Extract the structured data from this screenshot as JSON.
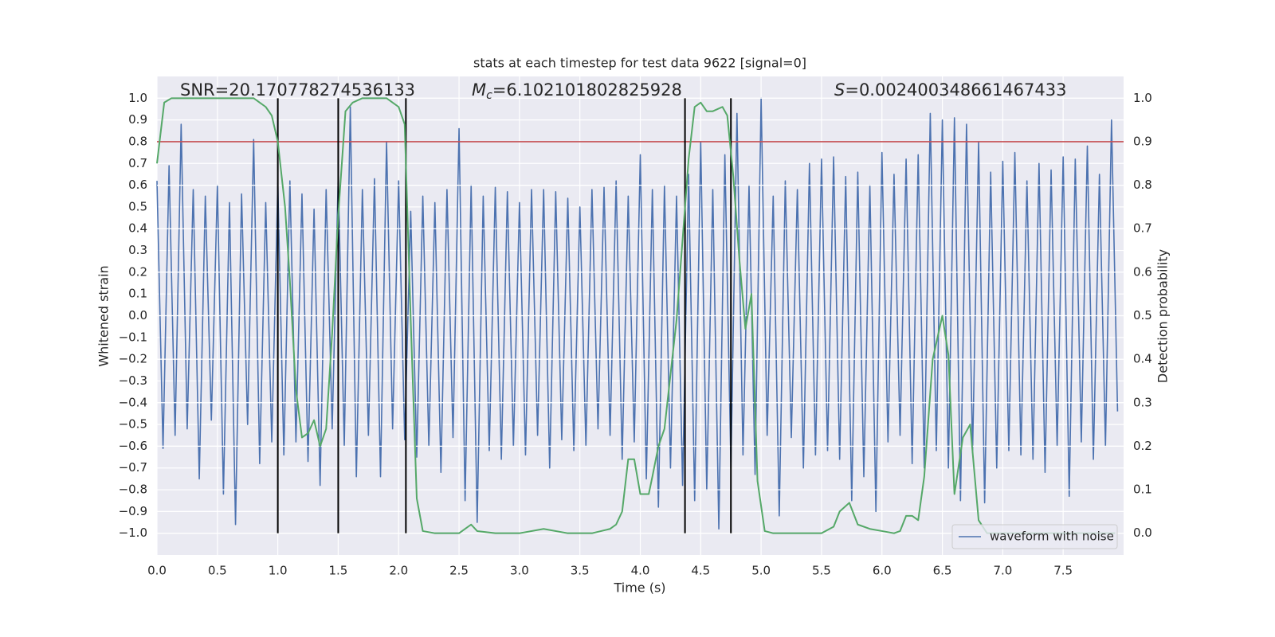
{
  "chart_data": {
    "type": "line",
    "title": "stats at each timestep for test data 9622 [signal=0]",
    "xlabel": "Time (s)",
    "ylabel": "Whitened strain",
    "y2label": "Detection probability",
    "annotations": [
      {
        "text": "SNR=20.170778274536133"
      },
      {
        "symbol": "M",
        "subscript": "c",
        "text": "=6.102101802825928"
      },
      {
        "symbol": "S",
        "text": "=0.002400348661467433"
      }
    ],
    "xlim": [
      0,
      8
    ],
    "xticks": [
      {
        "value": 0,
        "label": "0.0"
      },
      0.5,
      {
        "value": 1,
        "label": "1.0"
      },
      1.5,
      {
        "value": 2,
        "label": "2.0"
      },
      2.5,
      {
        "value": 3,
        "label": "3.0"
      },
      3.5,
      {
        "value": 4,
        "label": "4.0"
      },
      4.5,
      {
        "value": 5,
        "label": "5.0"
      },
      5.5,
      {
        "value": 6,
        "label": "6.0"
      },
      6.5,
      {
        "value": 7,
        "label": "7.0"
      },
      7.5
    ],
    "ylim": [
      -1.1,
      1.1
    ],
    "yticks": [
      {
        "value": -1,
        "label": "−1.0"
      },
      {
        "value": -0.9,
        "label": "−0.9"
      },
      {
        "value": -0.8,
        "label": "−0.8"
      },
      {
        "value": -0.7,
        "label": "−0.7"
      },
      {
        "value": -0.6,
        "label": "−0.6"
      },
      {
        "value": -0.5,
        "label": "−0.5"
      },
      {
        "value": -0.4,
        "label": "−0.4"
      },
      {
        "value": -0.3,
        "label": "−0.3"
      },
      {
        "value": -0.2,
        "label": "−0.2"
      },
      {
        "value": -0.1,
        "label": "−0.1"
      },
      {
        "value": 0,
        "label": "0.0"
      },
      0.1,
      0.2,
      0.3,
      0.4,
      0.5,
      0.6,
      0.7,
      0.8,
      0.9,
      {
        "value": 1,
        "label": "1.0"
      }
    ],
    "y2lim": [
      -0.05,
      1.05
    ],
    "y2ticks": [
      {
        "value": 0,
        "label": "0.0"
      },
      0.1,
      0.2,
      0.3,
      0.4,
      0.5,
      0.6,
      0.7,
      0.8,
      0.9,
      {
        "value": 1,
        "label": "1.0"
      }
    ],
    "grid": true,
    "legend_loc": "lower right",
    "series": [
      {
        "name": "waveform with noise",
        "color": "#4c72b0",
        "x": [
          0,
          0.05,
          0.1,
          0.15,
          0.2,
          0.25,
          0.3,
          0.35,
          0.4,
          0.45,
          0.5,
          0.55,
          0.6,
          0.65,
          0.7,
          0.75,
          0.8,
          0.85,
          0.9,
          0.95,
          1,
          1.05,
          1.1,
          1.15,
          1.2,
          1.25,
          1.3,
          1.35,
          1.4,
          1.45,
          1.5,
          1.55,
          1.6,
          1.65,
          1.7,
          1.75,
          1.8,
          1.85,
          1.9,
          1.95,
          2,
          2.05,
          2.1,
          2.15,
          2.2,
          2.25,
          2.3,
          2.35,
          2.4,
          2.45,
          2.5,
          2.55,
          2.6,
          2.65,
          2.7,
          2.75,
          2.8,
          2.85,
          2.9,
          2.95,
          3,
          3.05,
          3.1,
          3.15,
          3.2,
          3.25,
          3.3,
          3.35,
          3.4,
          3.45,
          3.5,
          3.55,
          3.6,
          3.65,
          3.7,
          3.75,
          3.8,
          3.85,
          3.9,
          3.95,
          4,
          4.05,
          4.1,
          4.15,
          4.2,
          4.25,
          4.3,
          4.35,
          4.4,
          4.45,
          4.5,
          4.55,
          4.6,
          4.65,
          4.7,
          4.75,
          4.8,
          4.85,
          4.9,
          4.95,
          5,
          5.05,
          5.1,
          5.15,
          5.2,
          5.25,
          5.3,
          5.35,
          5.4,
          5.45,
          5.5,
          5.55,
          5.6,
          5.65,
          5.7,
          5.75,
          5.8,
          5.85,
          5.9,
          5.95,
          6,
          6.05,
          6.1,
          6.15,
          6.2,
          6.25,
          6.3,
          6.35,
          6.4,
          6.45,
          6.5,
          6.55,
          6.6,
          6.65,
          6.7,
          6.75,
          6.8,
          6.85,
          6.9,
          6.95,
          7,
          7.05,
          7.1,
          7.15,
          7.2,
          7.25,
          7.3,
          7.35,
          7.4,
          7.45,
          7.5,
          7.55,
          7.6,
          7.65,
          7.7,
          7.75,
          7.8,
          7.85,
          7.9,
          7.95
        ],
        "values": [
          0.62,
          -0.61,
          0.69,
          -0.55,
          0.88,
          -0.52,
          0.58,
          -0.75,
          0.55,
          -0.48,
          0.6,
          -0.82,
          0.52,
          -0.96,
          0.56,
          -0.5,
          0.81,
          -0.68,
          0.52,
          -0.58,
          0.61,
          -0.64,
          0.62,
          -0.58,
          0.56,
          -0.67,
          0.49,
          -0.78,
          0.58,
          -0.52,
          0.64,
          -0.6,
          0.96,
          -0.74,
          0.58,
          -0.55,
          0.63,
          -0.74,
          0.8,
          -0.52,
          0.62,
          -0.57,
          0.48,
          -0.65,
          0.55,
          -0.6,
          0.52,
          -0.72,
          0.58,
          -0.56,
          0.86,
          -0.85,
          0.6,
          -0.95,
          0.55,
          -0.62,
          0.59,
          -0.66,
          0.57,
          -0.6,
          0.52,
          -0.64,
          0.58,
          -0.55,
          0.58,
          -0.7,
          0.57,
          -0.57,
          0.54,
          -0.62,
          0.5,
          -0.6,
          0.58,
          -0.52,
          0.59,
          -0.55,
          0.62,
          -0.66,
          0.55,
          -0.58,
          0.74,
          -0.75,
          0.58,
          -0.88,
          0.6,
          -0.7,
          0.55,
          -0.78,
          0.65,
          -0.85,
          0.8,
          -0.8,
          0.58,
          -0.98,
          0.74,
          -0.7,
          0.93,
          -0.64,
          0.6,
          -0.73,
          1.0,
          -0.55,
          0.55,
          -0.92,
          0.62,
          -0.56,
          0.58,
          -0.7,
          0.7,
          -0.64,
          0.72,
          -0.62,
          0.73,
          -0.66,
          0.64,
          -0.85,
          0.66,
          -0.74,
          0.6,
          -0.9,
          0.75,
          -0.58,
          0.65,
          -0.55,
          0.72,
          -0.68,
          0.74,
          -0.7,
          0.93,
          -0.62,
          0.9,
          -0.7,
          0.91,
          -0.85,
          0.88,
          -0.63,
          0.8,
          -0.86,
          0.66,
          -0.7,
          0.71,
          -0.62,
          0.75,
          -0.64,
          0.62,
          -0.66,
          0.7,
          -0.72,
          0.67,
          -0.6,
          0.73,
          -0.83,
          0.72,
          -0.58,
          0.78,
          -0.66,
          0.65,
          -0.6,
          0.9,
          -0.44
        ]
      },
      {
        "color": "#55a868",
        "axis": "y2",
        "x": [
          0,
          0.06,
          0.12,
          0.3,
          0.5,
          0.7,
          0.8,
          0.85,
          0.9,
          0.95,
          1,
          1.06,
          1.1,
          1.15,
          1.2,
          1.25,
          1.3,
          1.35,
          1.4,
          1.45,
          1.5,
          1.56,
          1.62,
          1.7,
          1.9,
          1.95,
          2,
          2.05,
          2.1,
          2.15,
          2.2,
          2.3,
          2.5,
          2.55,
          2.6,
          2.65,
          2.8,
          3,
          3.2,
          3.4,
          3.6,
          3.75,
          3.8,
          3.85,
          3.9,
          3.95,
          4,
          4.07,
          4.1,
          4.15,
          4.2,
          4.3,
          4.4,
          4.45,
          4.5,
          4.55,
          4.6,
          4.68,
          4.72,
          4.77,
          4.82,
          4.87,
          4.92,
          4.97,
          5.03,
          5.1,
          5.5,
          5.6,
          5.65,
          5.73,
          5.8,
          5.9,
          6,
          6.1,
          6.15,
          6.2,
          6.25,
          6.3,
          6.35,
          6.42,
          6.5,
          6.55,
          6.6,
          6.67,
          6.73,
          6.8,
          6.87,
          7,
          7.5,
          7.93
        ],
        "values": [
          0.85,
          0.99,
          1.0,
          1.0,
          1.0,
          1.0,
          1.0,
          0.99,
          0.98,
          0.96,
          0.9,
          0.75,
          0.58,
          0.33,
          0.22,
          0.23,
          0.26,
          0.2,
          0.24,
          0.46,
          0.73,
          0.97,
          0.99,
          1.0,
          1.0,
          0.99,
          0.98,
          0.94,
          0.49,
          0.08,
          0.005,
          0.0,
          0.0,
          0.01,
          0.02,
          0.005,
          0.0,
          0.0,
          0.01,
          0.0,
          0.0,
          0.01,
          0.02,
          0.05,
          0.17,
          0.17,
          0.09,
          0.09,
          0.13,
          0.2,
          0.24,
          0.49,
          0.86,
          0.98,
          0.99,
          0.97,
          0.97,
          0.98,
          0.96,
          0.82,
          0.63,
          0.47,
          0.55,
          0.12,
          0.005,
          0.0,
          0.0,
          0.015,
          0.05,
          0.07,
          0.02,
          0.01,
          0.005,
          0.0,
          0.005,
          0.04,
          0.04,
          0.03,
          0.13,
          0.4,
          0.5,
          0.41,
          0.09,
          0.22,
          0.25,
          0.03,
          0.0,
          0.0,
          0.0,
          0.0
        ]
      }
    ],
    "hline": {
      "value": 0.8,
      "color": "#c44e52"
    },
    "vlines": [
      1.0,
      1.5,
      2.06,
      4.37,
      4.75
    ],
    "vline_ylim": [
      -1.0,
      1.0
    ],
    "vline_color": "#000000"
  }
}
